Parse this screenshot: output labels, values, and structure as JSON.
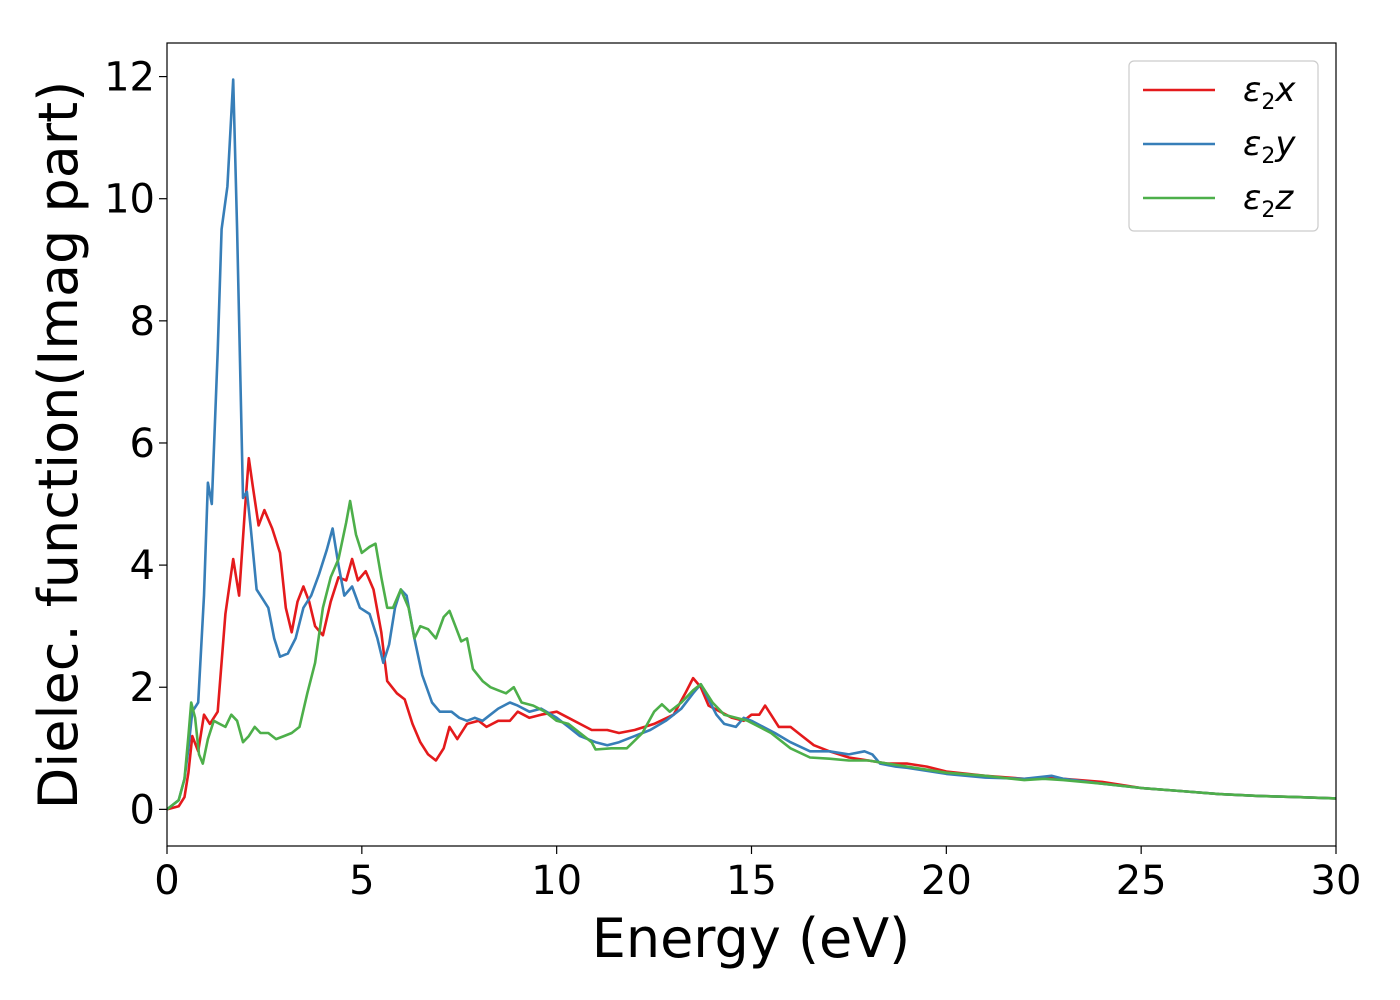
{
  "chart_data": {
    "type": "line",
    "xlabel": "Energy (eV)",
    "ylabel": "Dielec. function(Imag part)",
    "xlim": [
      0,
      30
    ],
    "ylim": [
      -0.6,
      12.55
    ],
    "xticks": [
      0,
      5,
      10,
      15,
      20,
      25,
      30
    ],
    "yticks": [
      0,
      2,
      4,
      6,
      8,
      10,
      12
    ],
    "grid": false,
    "legend_position": "top-right",
    "series": [
      {
        "name": "ε2x",
        "legend": {
          "base": "ε",
          "sub": "2",
          "suffix": "x"
        },
        "color": "#e41a1c",
        "points": [
          [
            0,
            0
          ],
          [
            0.3,
            0.05
          ],
          [
            0.45,
            0.2
          ],
          [
            0.55,
            0.6
          ],
          [
            0.65,
            1.2
          ],
          [
            0.8,
            0.95
          ],
          [
            0.95,
            1.55
          ],
          [
            1.1,
            1.4
          ],
          [
            1.3,
            1.6
          ],
          [
            1.5,
            3.2
          ],
          [
            1.7,
            4.1
          ],
          [
            1.85,
            3.5
          ],
          [
            2.0,
            4.9
          ],
          [
            2.1,
            5.75
          ],
          [
            2.2,
            5.3
          ],
          [
            2.35,
            4.65
          ],
          [
            2.5,
            4.9
          ],
          [
            2.7,
            4.6
          ],
          [
            2.9,
            4.2
          ],
          [
            3.05,
            3.3
          ],
          [
            3.2,
            2.9
          ],
          [
            3.35,
            3.4
          ],
          [
            3.5,
            3.65
          ],
          [
            3.65,
            3.4
          ],
          [
            3.8,
            3.0
          ],
          [
            4.0,
            2.85
          ],
          [
            4.2,
            3.4
          ],
          [
            4.4,
            3.8
          ],
          [
            4.6,
            3.75
          ],
          [
            4.75,
            4.1
          ],
          [
            4.9,
            3.75
          ],
          [
            5.1,
            3.9
          ],
          [
            5.3,
            3.6
          ],
          [
            5.5,
            2.9
          ],
          [
            5.65,
            2.1
          ],
          [
            5.9,
            1.9
          ],
          [
            6.1,
            1.8
          ],
          [
            6.3,
            1.4
          ],
          [
            6.5,
            1.1
          ],
          [
            6.7,
            0.9
          ],
          [
            6.9,
            0.8
          ],
          [
            7.1,
            1.0
          ],
          [
            7.25,
            1.35
          ],
          [
            7.45,
            1.15
          ],
          [
            7.7,
            1.4
          ],
          [
            8.0,
            1.45
          ],
          [
            8.2,
            1.35
          ],
          [
            8.5,
            1.45
          ],
          [
            8.8,
            1.45
          ],
          [
            9.0,
            1.6
          ],
          [
            9.3,
            1.5
          ],
          [
            9.6,
            1.55
          ],
          [
            10.0,
            1.6
          ],
          [
            10.3,
            1.5
          ],
          [
            10.6,
            1.4
          ],
          [
            10.9,
            1.3
          ],
          [
            11.3,
            1.3
          ],
          [
            11.6,
            1.25
          ],
          [
            12.0,
            1.3
          ],
          [
            12.5,
            1.4
          ],
          [
            13.0,
            1.55
          ],
          [
            13.3,
            1.9
          ],
          [
            13.5,
            2.15
          ],
          [
            13.7,
            2.0
          ],
          [
            13.9,
            1.7
          ],
          [
            14.2,
            1.6
          ],
          [
            14.5,
            1.5
          ],
          [
            14.8,
            1.45
          ],
          [
            15.0,
            1.55
          ],
          [
            15.2,
            1.55
          ],
          [
            15.35,
            1.7
          ],
          [
            15.5,
            1.55
          ],
          [
            15.7,
            1.35
          ],
          [
            16.0,
            1.35
          ],
          [
            16.3,
            1.2
          ],
          [
            16.6,
            1.05
          ],
          [
            17.0,
            0.95
          ],
          [
            17.5,
            0.85
          ],
          [
            18.0,
            0.8
          ],
          [
            18.5,
            0.75
          ],
          [
            19.0,
            0.75
          ],
          [
            19.5,
            0.7
          ],
          [
            20.0,
            0.62
          ],
          [
            21.0,
            0.55
          ],
          [
            22.0,
            0.5
          ],
          [
            22.7,
            0.52
          ],
          [
            23.0,
            0.5
          ],
          [
            24.0,
            0.45
          ],
          [
            25.0,
            0.35
          ],
          [
            26.0,
            0.3
          ],
          [
            27.0,
            0.25
          ],
          [
            28.0,
            0.22
          ],
          [
            29.0,
            0.2
          ],
          [
            30.0,
            0.18
          ]
        ]
      },
      {
        "name": "ε2y",
        "legend": {
          "base": "ε",
          "sub": "2",
          "suffix": "y"
        },
        "color": "#377eb8",
        "points": [
          [
            0,
            0
          ],
          [
            0.3,
            0.15
          ],
          [
            0.45,
            0.5
          ],
          [
            0.55,
            1.0
          ],
          [
            0.65,
            1.6
          ],
          [
            0.8,
            1.75
          ],
          [
            0.95,
            3.5
          ],
          [
            1.05,
            5.35
          ],
          [
            1.15,
            5.0
          ],
          [
            1.3,
            7.5
          ],
          [
            1.4,
            9.5
          ],
          [
            1.55,
            10.2
          ],
          [
            1.7,
            11.95
          ],
          [
            1.8,
            9.5
          ],
          [
            1.95,
            5.1
          ],
          [
            2.05,
            5.2
          ],
          [
            2.15,
            4.6
          ],
          [
            2.3,
            3.6
          ],
          [
            2.45,
            3.45
          ],
          [
            2.6,
            3.3
          ],
          [
            2.75,
            2.8
          ],
          [
            2.9,
            2.5
          ],
          [
            3.1,
            2.55
          ],
          [
            3.3,
            2.8
          ],
          [
            3.5,
            3.3
          ],
          [
            3.7,
            3.5
          ],
          [
            3.9,
            3.85
          ],
          [
            4.1,
            4.25
          ],
          [
            4.25,
            4.6
          ],
          [
            4.4,
            4.0
          ],
          [
            4.55,
            3.5
          ],
          [
            4.75,
            3.65
          ],
          [
            4.95,
            3.3
          ],
          [
            5.2,
            3.2
          ],
          [
            5.4,
            2.8
          ],
          [
            5.55,
            2.4
          ],
          [
            5.7,
            2.7
          ],
          [
            5.85,
            3.3
          ],
          [
            6.0,
            3.6
          ],
          [
            6.15,
            3.5
          ],
          [
            6.35,
            2.8
          ],
          [
            6.55,
            2.2
          ],
          [
            6.8,
            1.75
          ],
          [
            7.0,
            1.6
          ],
          [
            7.3,
            1.6
          ],
          [
            7.5,
            1.5
          ],
          [
            7.7,
            1.45
          ],
          [
            7.9,
            1.5
          ],
          [
            8.1,
            1.45
          ],
          [
            8.3,
            1.55
          ],
          [
            8.5,
            1.65
          ],
          [
            8.8,
            1.75
          ],
          [
            9.0,
            1.7
          ],
          [
            9.3,
            1.6
          ],
          [
            9.6,
            1.65
          ],
          [
            10.0,
            1.5
          ],
          [
            10.3,
            1.35
          ],
          [
            10.6,
            1.2
          ],
          [
            11.0,
            1.1
          ],
          [
            11.3,
            1.05
          ],
          [
            11.6,
            1.1
          ],
          [
            12.0,
            1.2
          ],
          [
            12.4,
            1.3
          ],
          [
            12.8,
            1.45
          ],
          [
            13.2,
            1.65
          ],
          [
            13.5,
            1.9
          ],
          [
            13.7,
            2.05
          ],
          [
            13.9,
            1.8
          ],
          [
            14.1,
            1.55
          ],
          [
            14.3,
            1.4
          ],
          [
            14.6,
            1.35
          ],
          [
            14.8,
            1.5
          ],
          [
            15.0,
            1.45
          ],
          [
            15.3,
            1.35
          ],
          [
            15.6,
            1.25
          ],
          [
            16.0,
            1.1
          ],
          [
            16.5,
            0.95
          ],
          [
            17.0,
            0.95
          ],
          [
            17.5,
            0.9
          ],
          [
            17.9,
            0.95
          ],
          [
            18.1,
            0.9
          ],
          [
            18.3,
            0.75
          ],
          [
            18.7,
            0.7
          ],
          [
            19.0,
            0.68
          ],
          [
            20.0,
            0.58
          ],
          [
            21.0,
            0.52
          ],
          [
            22.0,
            0.5
          ],
          [
            22.7,
            0.55
          ],
          [
            23.0,
            0.5
          ],
          [
            24.0,
            0.42
          ],
          [
            25.0,
            0.35
          ],
          [
            26.0,
            0.3
          ],
          [
            27.0,
            0.25
          ],
          [
            28.0,
            0.22
          ],
          [
            29.0,
            0.2
          ],
          [
            30.0,
            0.18
          ]
        ]
      },
      {
        "name": "ε2z",
        "legend": {
          "base": "ε",
          "sub": "2",
          "suffix": "z"
        },
        "color": "#4daf4a",
        "points": [
          [
            0,
            0
          ],
          [
            0.3,
            0.15
          ],
          [
            0.45,
            0.5
          ],
          [
            0.55,
            1.2
          ],
          [
            0.62,
            1.75
          ],
          [
            0.72,
            1.5
          ],
          [
            0.82,
            0.9
          ],
          [
            0.92,
            0.75
          ],
          [
            1.05,
            1.15
          ],
          [
            1.2,
            1.45
          ],
          [
            1.35,
            1.4
          ],
          [
            1.5,
            1.35
          ],
          [
            1.65,
            1.55
          ],
          [
            1.8,
            1.45
          ],
          [
            1.95,
            1.1
          ],
          [
            2.1,
            1.2
          ],
          [
            2.25,
            1.35
          ],
          [
            2.4,
            1.25
          ],
          [
            2.6,
            1.25
          ],
          [
            2.8,
            1.15
          ],
          [
            3.0,
            1.2
          ],
          [
            3.2,
            1.25
          ],
          [
            3.4,
            1.35
          ],
          [
            3.6,
            1.9
          ],
          [
            3.8,
            2.4
          ],
          [
            4.0,
            3.3
          ],
          [
            4.2,
            3.8
          ],
          [
            4.4,
            4.1
          ],
          [
            4.6,
            4.7
          ],
          [
            4.7,
            5.05
          ],
          [
            4.85,
            4.5
          ],
          [
            5.0,
            4.2
          ],
          [
            5.2,
            4.3
          ],
          [
            5.35,
            4.35
          ],
          [
            5.5,
            3.8
          ],
          [
            5.65,
            3.3
          ],
          [
            5.8,
            3.3
          ],
          [
            6.0,
            3.6
          ],
          [
            6.2,
            3.3
          ],
          [
            6.35,
            2.8
          ],
          [
            6.5,
            3.0
          ],
          [
            6.7,
            2.95
          ],
          [
            6.9,
            2.8
          ],
          [
            7.1,
            3.15
          ],
          [
            7.25,
            3.25
          ],
          [
            7.4,
            3.0
          ],
          [
            7.55,
            2.75
          ],
          [
            7.7,
            2.8
          ],
          [
            7.85,
            2.3
          ],
          [
            8.1,
            2.1
          ],
          [
            8.3,
            2.0
          ],
          [
            8.5,
            1.95
          ],
          [
            8.7,
            1.9
          ],
          [
            8.9,
            2.0
          ],
          [
            9.1,
            1.75
          ],
          [
            9.4,
            1.7
          ],
          [
            9.7,
            1.6
          ],
          [
            10.0,
            1.45
          ],
          [
            10.3,
            1.4
          ],
          [
            10.6,
            1.25
          ],
          [
            10.9,
            1.1
          ],
          [
            11.0,
            0.98
          ],
          [
            11.4,
            1.0
          ],
          [
            11.8,
            1.0
          ],
          [
            12.2,
            1.25
          ],
          [
            12.5,
            1.6
          ],
          [
            12.7,
            1.72
          ],
          [
            12.9,
            1.6
          ],
          [
            13.2,
            1.75
          ],
          [
            13.5,
            1.95
          ],
          [
            13.7,
            2.05
          ],
          [
            14.0,
            1.75
          ],
          [
            14.3,
            1.55
          ],
          [
            14.6,
            1.5
          ],
          [
            14.9,
            1.45
          ],
          [
            15.2,
            1.35
          ],
          [
            15.5,
            1.25
          ],
          [
            16.0,
            1.0
          ],
          [
            16.5,
            0.85
          ],
          [
            17.0,
            0.83
          ],
          [
            17.5,
            0.8
          ],
          [
            18.0,
            0.8
          ],
          [
            18.5,
            0.75
          ],
          [
            19.0,
            0.7
          ],
          [
            20.0,
            0.6
          ],
          [
            21.0,
            0.55
          ],
          [
            22.0,
            0.48
          ],
          [
            22.5,
            0.5
          ],
          [
            23.0,
            0.48
          ],
          [
            24.0,
            0.42
          ],
          [
            25.0,
            0.35
          ],
          [
            26.0,
            0.3
          ],
          [
            27.0,
            0.25
          ],
          [
            28.0,
            0.22
          ],
          [
            29.0,
            0.2
          ],
          [
            30.0,
            0.18
          ]
        ]
      }
    ]
  }
}
